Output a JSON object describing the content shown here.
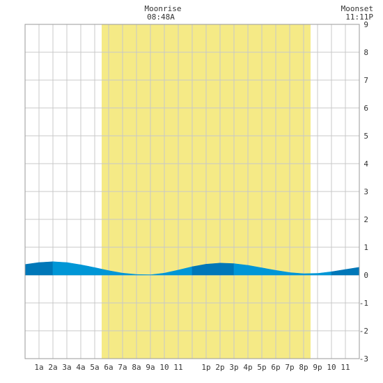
{
  "header": {
    "moonrise_label": "Moonrise",
    "moonrise_time": "08:48A",
    "moonset_label": "Moonset",
    "moonset_time": "11:11P"
  },
  "colors": {
    "daylight": "#f5ea86",
    "tide_fill": "#0096d6",
    "tide_fill_dark": "#0077b8",
    "grid": "#c8c8c8",
    "border": "#9a9a9a"
  },
  "chart_data": {
    "type": "area",
    "xlim": [
      0,
      24
    ],
    "ylim": [
      -3,
      9
    ],
    "y_ticks": [
      9,
      8,
      7,
      6,
      5,
      4,
      3,
      2,
      1,
      0,
      -1,
      -2,
      -3
    ],
    "x_tick_labels": [
      "1a",
      "2a",
      "3a",
      "4a",
      "5a",
      "6a",
      "7a",
      "8a",
      "9a",
      "10",
      "11",
      "1p",
      "2p",
      "3p",
      "4p",
      "5p",
      "6p",
      "7p",
      "8p",
      "9p",
      "10",
      "11"
    ],
    "x_tick_hours": [
      1,
      2,
      3,
      4,
      5,
      6,
      7,
      8,
      9,
      10,
      11,
      13,
      14,
      15,
      16,
      17,
      18,
      19,
      20,
      21,
      22,
      23
    ],
    "daylight": {
      "start": 5.5,
      "end": 20.5
    },
    "grid": true,
    "series": [
      {
        "x": [
          0,
          1,
          2,
          3,
          4,
          5,
          6,
          7,
          8,
          9,
          10,
          11,
          12,
          13,
          14,
          15,
          16,
          17,
          18,
          19,
          20,
          21,
          22,
          23,
          24
        ],
        "y": [
          0.38,
          0.45,
          0.48,
          0.45,
          0.37,
          0.27,
          0.16,
          0.07,
          0.02,
          0.01,
          0.07,
          0.18,
          0.3,
          0.39,
          0.43,
          0.41,
          0.35,
          0.26,
          0.17,
          0.09,
          0.05,
          0.06,
          0.12,
          0.2,
          0.28
        ]
      }
    ]
  }
}
